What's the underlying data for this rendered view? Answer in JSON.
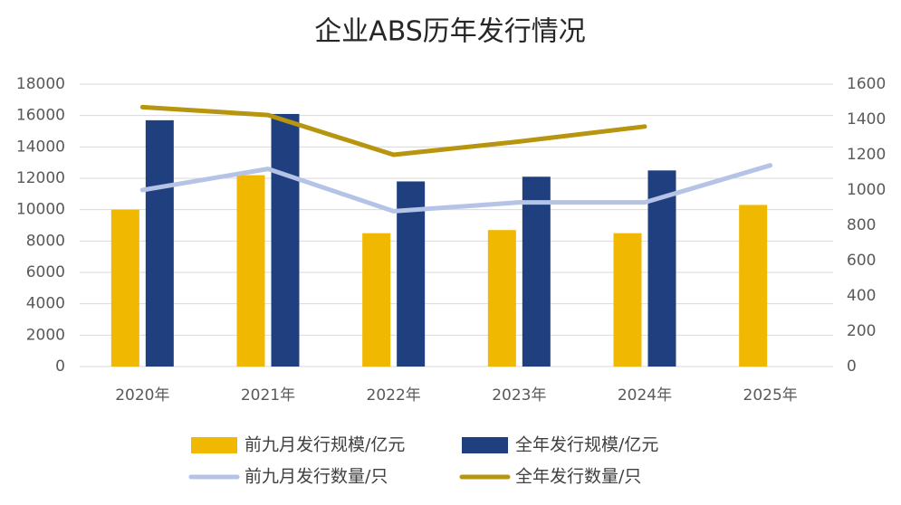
{
  "chart_data": {
    "type": "bar",
    "title": "企业ABS历年发行情况",
    "categories": [
      "2020年",
      "2021年",
      "2022年",
      "2023年",
      "2024年",
      "2025年"
    ],
    "series": [
      {
        "name": "前九月发行规模/亿元",
        "type": "bar",
        "color": "#f0b800",
        "values": [
          10000,
          12200,
          8500,
          8700,
          8500,
          10300
        ]
      },
      {
        "name": "全年发行规模/亿元",
        "type": "bar",
        "color": "#203f7f",
        "values": [
          15700,
          16100,
          11800,
          12100,
          12500,
          null
        ]
      },
      {
        "name": "前九月发行数量/只",
        "type": "line",
        "axis": "y2",
        "color": "#b4c3e6",
        "values": [
          1000,
          1120,
          880,
          930,
          930,
          1140
        ]
      },
      {
        "name": "全年发行数量/只",
        "type": "line",
        "axis": "y2",
        "color": "#b8950f",
        "values": [
          1470,
          1425,
          1200,
          1275,
          1360,
          null
        ]
      }
    ],
    "ylim": [
      0,
      18000
    ],
    "yticks": [
      0,
      2000,
      4000,
      6000,
      8000,
      10000,
      12000,
      14000,
      16000,
      18000
    ],
    "y2lim": [
      0,
      1600
    ],
    "y2ticks": [
      0,
      200,
      400,
      600,
      800,
      1000,
      1200,
      1400,
      1600
    ],
    "grid": true,
    "legend": "bottom"
  }
}
